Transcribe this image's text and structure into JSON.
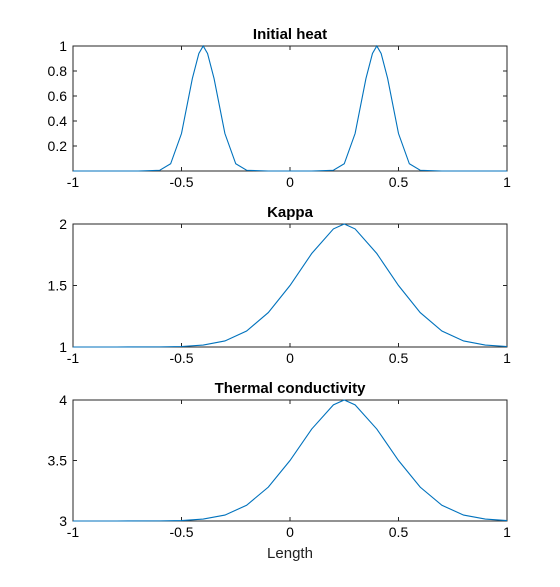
{
  "chart_data": [
    {
      "type": "line",
      "title": "Initial heat",
      "xlabel": "",
      "ylabel": "",
      "xlim": [
        -1,
        1
      ],
      "ylim": [
        0,
        1
      ],
      "xticks": [
        "-1",
        "-0.5",
        "0",
        "0.5",
        "1"
      ],
      "yticks": [
        "0.2",
        "0.4",
        "0.6",
        "0.8",
        "1"
      ],
      "grid": false,
      "color": "#0072BD",
      "series": [
        {
          "x": [
            -1,
            -0.9,
            -0.8,
            -0.7,
            -0.6,
            -0.55,
            -0.5,
            -0.45,
            -0.42,
            -0.4,
            -0.38,
            -0.35,
            -0.3,
            -0.25,
            -0.2,
            -0.1,
            0,
            0.1,
            0.2,
            0.25,
            0.3,
            0.35,
            0.38,
            0.4,
            0.42,
            0.45,
            0.5,
            0.55,
            0.6,
            0.7,
            0.8,
            0.9,
            1
          ],
          "y": [
            0,
            0,
            0,
            0,
            0.006,
            0.058,
            0.3,
            0.74,
            0.94,
            1,
            0.94,
            0.74,
            0.3,
            0.058,
            0.006,
            0,
            0,
            0,
            0.006,
            0.058,
            0.3,
            0.74,
            0.94,
            1,
            0.94,
            0.74,
            0.3,
            0.058,
            0.006,
            0,
            0,
            0,
            0
          ]
        }
      ]
    },
    {
      "type": "line",
      "title": "Kappa",
      "xlabel": "",
      "ylabel": "",
      "xlim": [
        -1,
        1
      ],
      "ylim": [
        1,
        2
      ],
      "xticks": [
        "-1",
        "-0.5",
        "0",
        "0.5",
        "1"
      ],
      "yticks": [
        "1",
        "1.5",
        "2"
      ],
      "grid": false,
      "color": "#0072BD",
      "series": [
        {
          "x": [
            -1,
            -0.8,
            -0.6,
            -0.5,
            -0.4,
            -0.3,
            -0.2,
            -0.1,
            0,
            0.1,
            0.2,
            0.25,
            0.3,
            0.4,
            0.5,
            0.6,
            0.7,
            0.8,
            0.9,
            1
          ],
          "y": [
            1,
            1,
            1.001,
            1.004,
            1.016,
            1.049,
            1.13,
            1.28,
            1.5,
            1.76,
            1.96,
            2,
            1.96,
            1.76,
            1.5,
            1.28,
            1.13,
            1.049,
            1.016,
            1.004
          ]
        }
      ]
    },
    {
      "type": "line",
      "title": "Thermal conductivity",
      "xlabel": "Length",
      "ylabel": "",
      "xlim": [
        -1,
        1
      ],
      "ylim": [
        3,
        4
      ],
      "xticks": [
        "-1",
        "-0.5",
        "0",
        "0.5",
        "1"
      ],
      "yticks": [
        "3",
        "3.5",
        "4"
      ],
      "grid": false,
      "color": "#0072BD",
      "series": [
        {
          "x": [
            -1,
            -0.8,
            -0.6,
            -0.5,
            -0.4,
            -0.3,
            -0.2,
            -0.1,
            0,
            0.1,
            0.2,
            0.25,
            0.3,
            0.4,
            0.5,
            0.6,
            0.7,
            0.8,
            0.9,
            1
          ],
          "y": [
            3,
            3,
            3.001,
            3.004,
            3.016,
            3.049,
            3.13,
            3.28,
            3.5,
            3.76,
            3.96,
            4,
            3.96,
            3.76,
            3.5,
            3.28,
            3.13,
            3.049,
            3.016,
            3.004
          ]
        }
      ]
    }
  ]
}
